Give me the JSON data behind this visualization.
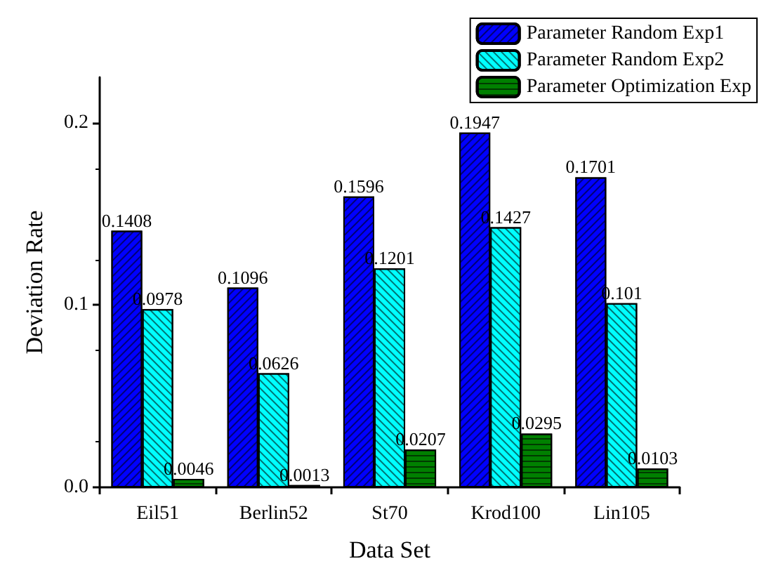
{
  "chart_data": {
    "type": "bar",
    "xlabel": "Data Set",
    "ylabel": "Deviation Rate",
    "categories": [
      "Eil51",
      "Berlin52",
      "St70",
      "Krod100",
      "Lin105"
    ],
    "series": [
      {
        "name": "Parameter Random Exp1",
        "color": "#0000ff",
        "values": [
          0.1408,
          0.1096,
          0.1596,
          0.1947,
          0.1701
        ]
      },
      {
        "name": "Parameter Random Exp2",
        "color": "#00ffff",
        "values": [
          0.0978,
          0.0626,
          0.1201,
          0.1427,
          0.101
        ]
      },
      {
        "name": "Parameter Optimization Exp",
        "color": "#008000",
        "values": [
          0.0046,
          0.0013,
          0.0207,
          0.0295,
          0.0103
        ]
      }
    ],
    "ylim": [
      0,
      0.225
    ],
    "yticks": [
      {
        "value": 0,
        "label": "0.0"
      },
      {
        "value": 0.1,
        "label": "0.1"
      },
      {
        "value": 0.2,
        "label": "0.2"
      }
    ],
    "data_labels": true,
    "grid": false,
    "legend": "top right"
  }
}
